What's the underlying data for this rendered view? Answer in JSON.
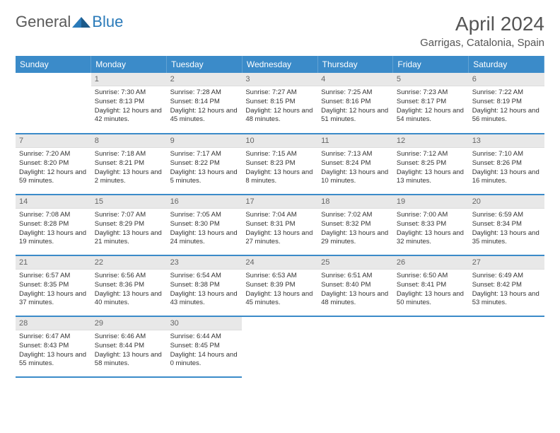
{
  "brand": {
    "part1": "General",
    "part2": "Blue"
  },
  "title": "April 2024",
  "location": "Garrigas, Catalonia, Spain",
  "colors": {
    "header_bg": "#3b8bc9",
    "header_text": "#ffffff",
    "daynum_bg": "#e8e8e8",
    "divider": "#3b8bc9",
    "text": "#333333",
    "brand_gray": "#5a5a5a",
    "brand_blue": "#2a7ab9"
  },
  "weekdays": [
    "Sunday",
    "Monday",
    "Tuesday",
    "Wednesday",
    "Thursday",
    "Friday",
    "Saturday"
  ],
  "weeks": [
    [
      null,
      {
        "n": "1",
        "sr": "Sunrise: 7:30 AM",
        "ss": "Sunset: 8:13 PM",
        "dl": "Daylight: 12 hours and 42 minutes."
      },
      {
        "n": "2",
        "sr": "Sunrise: 7:28 AM",
        "ss": "Sunset: 8:14 PM",
        "dl": "Daylight: 12 hours and 45 minutes."
      },
      {
        "n": "3",
        "sr": "Sunrise: 7:27 AM",
        "ss": "Sunset: 8:15 PM",
        "dl": "Daylight: 12 hours and 48 minutes."
      },
      {
        "n": "4",
        "sr": "Sunrise: 7:25 AM",
        "ss": "Sunset: 8:16 PM",
        "dl": "Daylight: 12 hours and 51 minutes."
      },
      {
        "n": "5",
        "sr": "Sunrise: 7:23 AM",
        "ss": "Sunset: 8:17 PM",
        "dl": "Daylight: 12 hours and 54 minutes."
      },
      {
        "n": "6",
        "sr": "Sunrise: 7:22 AM",
        "ss": "Sunset: 8:19 PM",
        "dl": "Daylight: 12 hours and 56 minutes."
      }
    ],
    [
      {
        "n": "7",
        "sr": "Sunrise: 7:20 AM",
        "ss": "Sunset: 8:20 PM",
        "dl": "Daylight: 12 hours and 59 minutes."
      },
      {
        "n": "8",
        "sr": "Sunrise: 7:18 AM",
        "ss": "Sunset: 8:21 PM",
        "dl": "Daylight: 13 hours and 2 minutes."
      },
      {
        "n": "9",
        "sr": "Sunrise: 7:17 AM",
        "ss": "Sunset: 8:22 PM",
        "dl": "Daylight: 13 hours and 5 minutes."
      },
      {
        "n": "10",
        "sr": "Sunrise: 7:15 AM",
        "ss": "Sunset: 8:23 PM",
        "dl": "Daylight: 13 hours and 8 minutes."
      },
      {
        "n": "11",
        "sr": "Sunrise: 7:13 AM",
        "ss": "Sunset: 8:24 PM",
        "dl": "Daylight: 13 hours and 10 minutes."
      },
      {
        "n": "12",
        "sr": "Sunrise: 7:12 AM",
        "ss": "Sunset: 8:25 PM",
        "dl": "Daylight: 13 hours and 13 minutes."
      },
      {
        "n": "13",
        "sr": "Sunrise: 7:10 AM",
        "ss": "Sunset: 8:26 PM",
        "dl": "Daylight: 13 hours and 16 minutes."
      }
    ],
    [
      {
        "n": "14",
        "sr": "Sunrise: 7:08 AM",
        "ss": "Sunset: 8:28 PM",
        "dl": "Daylight: 13 hours and 19 minutes."
      },
      {
        "n": "15",
        "sr": "Sunrise: 7:07 AM",
        "ss": "Sunset: 8:29 PM",
        "dl": "Daylight: 13 hours and 21 minutes."
      },
      {
        "n": "16",
        "sr": "Sunrise: 7:05 AM",
        "ss": "Sunset: 8:30 PM",
        "dl": "Daylight: 13 hours and 24 minutes."
      },
      {
        "n": "17",
        "sr": "Sunrise: 7:04 AM",
        "ss": "Sunset: 8:31 PM",
        "dl": "Daylight: 13 hours and 27 minutes."
      },
      {
        "n": "18",
        "sr": "Sunrise: 7:02 AM",
        "ss": "Sunset: 8:32 PM",
        "dl": "Daylight: 13 hours and 29 minutes."
      },
      {
        "n": "19",
        "sr": "Sunrise: 7:00 AM",
        "ss": "Sunset: 8:33 PM",
        "dl": "Daylight: 13 hours and 32 minutes."
      },
      {
        "n": "20",
        "sr": "Sunrise: 6:59 AM",
        "ss": "Sunset: 8:34 PM",
        "dl": "Daylight: 13 hours and 35 minutes."
      }
    ],
    [
      {
        "n": "21",
        "sr": "Sunrise: 6:57 AM",
        "ss": "Sunset: 8:35 PM",
        "dl": "Daylight: 13 hours and 37 minutes."
      },
      {
        "n": "22",
        "sr": "Sunrise: 6:56 AM",
        "ss": "Sunset: 8:36 PM",
        "dl": "Daylight: 13 hours and 40 minutes."
      },
      {
        "n": "23",
        "sr": "Sunrise: 6:54 AM",
        "ss": "Sunset: 8:38 PM",
        "dl": "Daylight: 13 hours and 43 minutes."
      },
      {
        "n": "24",
        "sr": "Sunrise: 6:53 AM",
        "ss": "Sunset: 8:39 PM",
        "dl": "Daylight: 13 hours and 45 minutes."
      },
      {
        "n": "25",
        "sr": "Sunrise: 6:51 AM",
        "ss": "Sunset: 8:40 PM",
        "dl": "Daylight: 13 hours and 48 minutes."
      },
      {
        "n": "26",
        "sr": "Sunrise: 6:50 AM",
        "ss": "Sunset: 8:41 PM",
        "dl": "Daylight: 13 hours and 50 minutes."
      },
      {
        "n": "27",
        "sr": "Sunrise: 6:49 AM",
        "ss": "Sunset: 8:42 PM",
        "dl": "Daylight: 13 hours and 53 minutes."
      }
    ],
    [
      {
        "n": "28",
        "sr": "Sunrise: 6:47 AM",
        "ss": "Sunset: 8:43 PM",
        "dl": "Daylight: 13 hours and 55 minutes."
      },
      {
        "n": "29",
        "sr": "Sunrise: 6:46 AM",
        "ss": "Sunset: 8:44 PM",
        "dl": "Daylight: 13 hours and 58 minutes."
      },
      {
        "n": "30",
        "sr": "Sunrise: 6:44 AM",
        "ss": "Sunset: 8:45 PM",
        "dl": "Daylight: 14 hours and 0 minutes."
      },
      null,
      null,
      null,
      null
    ]
  ]
}
